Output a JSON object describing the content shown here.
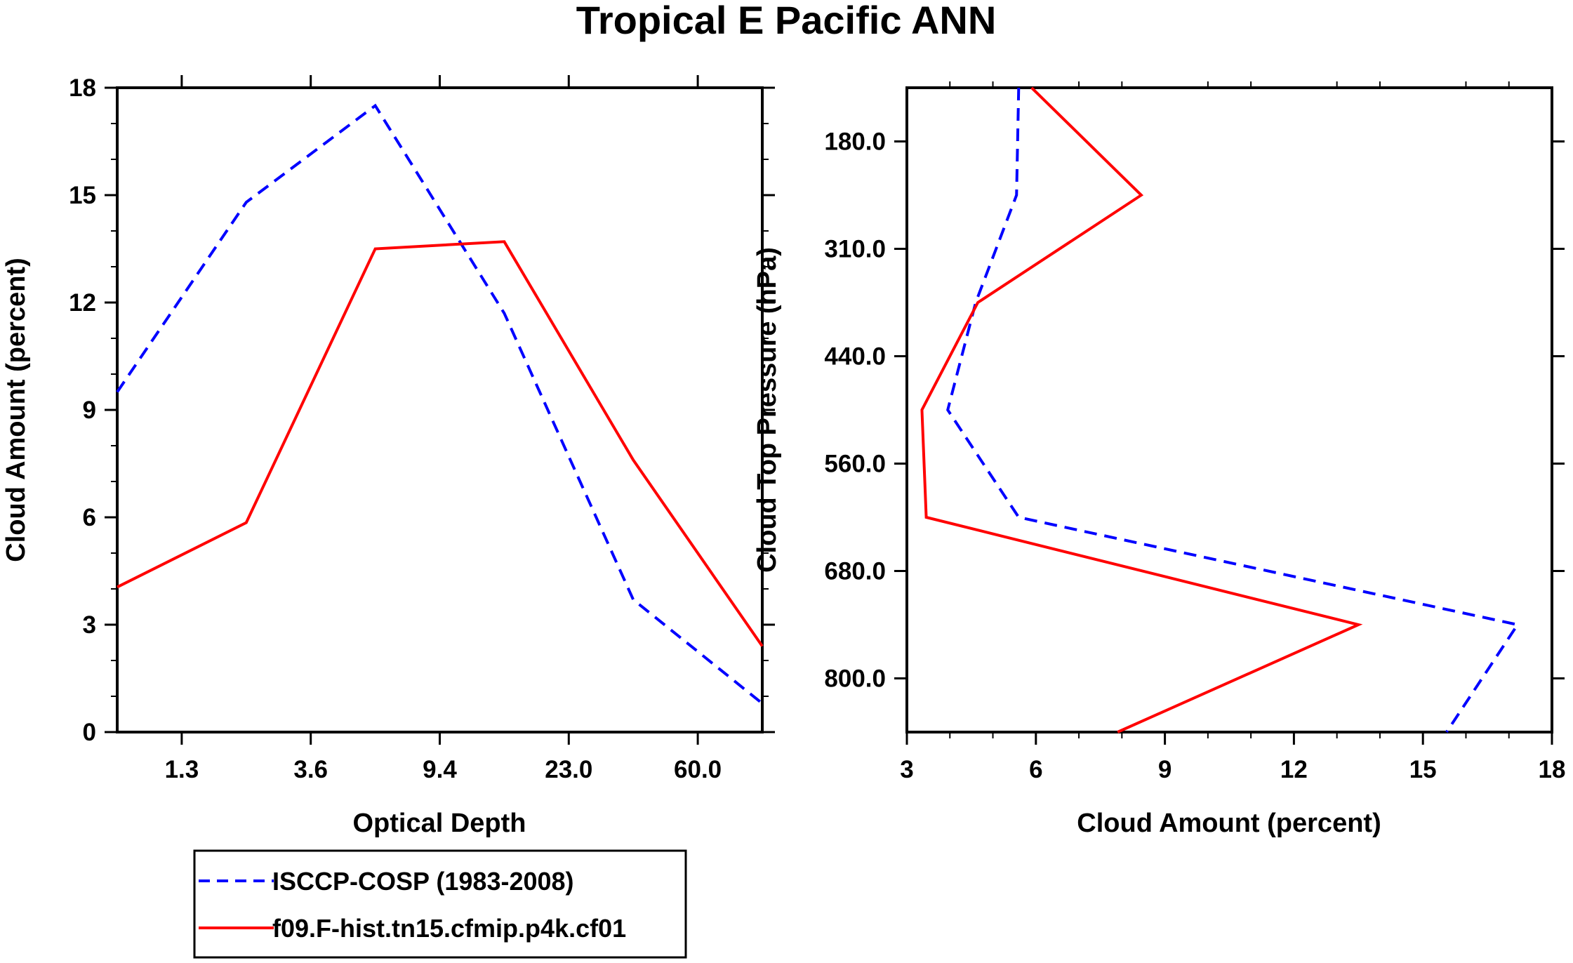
{
  "title": "Tropical E Pacific ANN",
  "colors": {
    "obs": "#0000ff",
    "model": "#ff0000",
    "axis": "#000000"
  },
  "chart_data": [
    {
      "type": "line",
      "xlabel": "Optical Depth",
      "ylabel": "Cloud Amount (percent)",
      "x_tick_labels": [
        "1.3",
        "3.6",
        "9.4",
        "23.0",
        "60.0"
      ],
      "y_ticks": [
        0,
        3,
        6,
        9,
        12,
        15,
        18
      ],
      "y_tick_labels": [
        "0",
        "3",
        "6",
        "9",
        "12",
        "15",
        "18"
      ],
      "xlim": [
        0,
        5
      ],
      "ylim": [
        0,
        18
      ],
      "bins": [
        0,
        1,
        2,
        3,
        4,
        5
      ],
      "series": [
        {
          "name": "ISCCP-COSP (1983-2008)",
          "style": "dashed",
          "x": [
            0,
            1,
            2,
            3,
            4,
            5
          ],
          "values": [
            9.5,
            14.8,
            17.5,
            11.7,
            3.7,
            0.8
          ]
        },
        {
          "name": "f09.F-hist.tn15.cfmip.p4k.cf01",
          "style": "solid",
          "x": [
            0,
            1,
            2,
            3,
            4,
            5
          ],
          "values": [
            4.05,
            5.85,
            13.5,
            13.7,
            7.6,
            2.4
          ]
        }
      ]
    },
    {
      "type": "line",
      "xlabel": "Cloud Amount (percent)",
      "ylabel": "Cloud Top Pressure (hPa)",
      "x_ticks": [
        3,
        6,
        9,
        12,
        15,
        18
      ],
      "x_tick_labels": [
        "3",
        "6",
        "9",
        "12",
        "15",
        "18"
      ],
      "y_tick_labels": [
        "180.0",
        "310.0",
        "440.0",
        "560.0",
        "680.0",
        "800.0"
      ],
      "xlim": [
        3,
        18
      ],
      "ylim_levels": [
        0,
        6
      ],
      "series": [
        {
          "name": "ISCCP-COSP (1983-2008)",
          "style": "dashed",
          "levels": [
            0,
            1,
            2,
            3,
            4,
            5,
            6
          ],
          "values": [
            5.6,
            5.55,
            4.6,
            3.95,
            5.6,
            17.2,
            15.55
          ]
        },
        {
          "name": "f09.F-hist.tn15.cfmip.p4k.cf01",
          "style": "solid",
          "levels": [
            0,
            1,
            2,
            3,
            4,
            5,
            6
          ],
          "values": [
            5.9,
            8.45,
            4.65,
            3.35,
            3.45,
            13.5,
            7.9
          ]
        }
      ]
    }
  ],
  "legend": {
    "entries": [
      {
        "label": "ISCCP-COSP (1983-2008)",
        "style": "dashed"
      },
      {
        "label": "f09.F-hist.tn15.cfmip.p4k.cf01",
        "style": "solid"
      }
    ]
  }
}
